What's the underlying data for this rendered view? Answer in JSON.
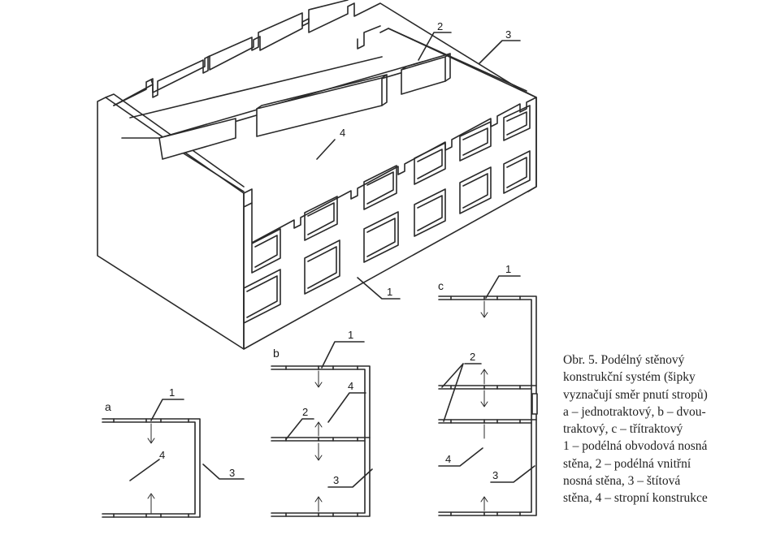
{
  "labels": {
    "iso_1": "1",
    "iso_2": "2",
    "iso_3": "3",
    "iso_4": "4",
    "a": {
      "letter": "a",
      "n1": "1",
      "n3": "3",
      "n4": "4"
    },
    "b": {
      "letter": "b",
      "n1": "1",
      "n2": "2",
      "n3": "3",
      "n4": "4"
    },
    "c": {
      "letter": "c",
      "n1": "1",
      "n2": "2",
      "n3": "3",
      "n4": "4"
    }
  },
  "caption": {
    "lines": [
      "Obr. 5.   Podélný stěnový",
      "konstrukční systém (šipky",
      "vyznačují směr pnutí stropů)",
      "a – jednotraktový, b – dvou-",
      "traktový, c – třítraktový",
      "1 – podélná obvodová nosná",
      "stěna, 2 – podélná vnitřní",
      "nosná stěna, 3 – štítová",
      "stěna, 4 – stropní konstrukce"
    ]
  },
  "colors": {
    "ink": "#2a2a2a",
    "paper": "#ffffff"
  }
}
